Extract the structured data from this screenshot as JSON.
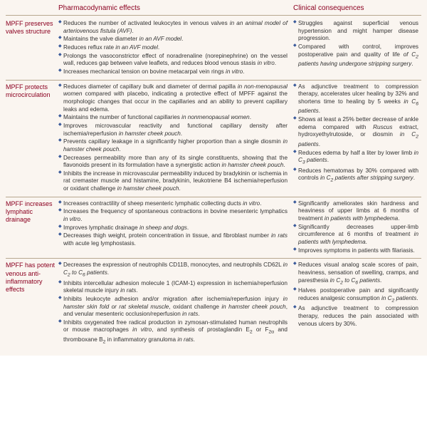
{
  "headers": {
    "pharm": "Pharmacodynamic effects",
    "clin": "Clinical consequences"
  },
  "rows": [
    {
      "label": "MPFF preserves valves structure",
      "pharm": [
        "Reduces the number of activated leukocytes in venous valves <i>in an animal model of arteriovenous fistula (AVF)</i>.",
        "Maintains the valve diameter <i>in an AVF model</i>.",
        "Reduces reflux rate <i>in an AVF model</i>.",
        "Prolongs the vasoconstrictor effect of noradrenaline (norepinephrine) on the vessel wall, reduces gap between valve leaflets, and reduces blood venous stasis <i>in vitro</i>.",
        "Increases mechanical tension on bovine metacarpal vein rings <i>in vitro</i>."
      ],
      "clin": [
        "Struggles against superficial venous hypertension and might hamper disease progression.",
        "Compared with control, improves postoperative pain and quality of life <i>of C<sub>2</sub> patients having undergone stripping surgery</i>."
      ]
    },
    {
      "label": "MPFF protects microcirculation",
      "pharm": [
        "Reduces diameter of capillary bulk and diameter of dermal papilla <i>in non-menopausal women</i> compared with placebo, indicating a protective effect of MPFF against the morphologic changes that occur in the capillaries and an ability to prevent capillary leaks and edema.",
        "Maintains the number of functional capillaries <i>in nonmenopausal women</i>.",
        "Improves microvascular reactivity and functional capillary density after ischemia/reperfusion <i>in hamster cheek pouch</i>.",
        "Prevents capillary leakage in a significantly higher proportion than a single diosmin <i>in hamster cheek pouch</i>.",
        "Decreases permeability more than any of its single constituents, showing that the flavonoids present in its formulation have a synergistic action <i>in hamster cheek pouch</i>.",
        "Inhibits the increase in microvascular permeability induced by bradykinin or ischemia in rat cremaster muscle and histamine, bradykinin, leukotriene B4 ischemia/reperfusion or oxidant challenge <i>in hamster cheek pouch</i>."
      ],
      "clin": [
        "As adjunctive treatment to compression therapy, accelerates ulcer healing by 32% and shortens time to healing by 5 weeks <i>in C<sub>6</sub> patients</i>.",
        "Shows at least a 25% better decrease of ankle edema compared with <i>Ruscus</i> extract, hydroxyethylrutoside, or diosmin <i>in C<sub>2</sub> patients</i>.",
        "Reduces edema by half a liter by lower limb <i>in C<sub>3</sub> patients</i>.",
        "Reduces hematomas by 30% compared with controls <i>in C<sub>2</sub> patients after stripping surgery</i>."
      ]
    },
    {
      "label": "MPFF increases lymphatic drainage",
      "pharm": [
        "Increases contractility of sheep mesenteric lymphatic collecting ducts <i>in vitro</i>.",
        "Increases the frequency of spontaneous contractions in bovine mesenteric lymphatics <i>in vitro</i>.",
        "Improves lymphatic drainage <i>in sheep and dogs</i>.",
        "Decreases thigh weight, protein concentration in tissue, and fibroblast number <i>in rats</i> with acute leg lymphostasis."
      ],
      "clin": [
        "Significantly ameliorates skin hardness and heaviness of upper limbs at 6 months of treatment <i>in patients with lymphedema</i>.",
        "Significantly decreases upper-limb circumference at 6 months of treatment <i>in patients with lymphedema</i>.",
        "Improves symptoms in patients with filariasis."
      ]
    },
    {
      "label": "MPFF has potent venous anti-inflammatory effects",
      "pharm": [
        "Decreases the expression of neutrophils CD11B, monocytes, and neutrophils CD62L <i>in C<sub>2</sub> to C<sub>6</sub> patients</i>.",
        "Inhibits intercellular adhesion molecule 1 (ICAM-1) expression in ischemia/reperfusion skeletal muscle injury <i>in rats</i>.",
        "Inhibits leukocyte adhesion and/or migration after ischemia/reperfusion injury <i>in hamster skin fold or rat skeletal muscle</i>, oxidant challenge <i>in hamster cheek pouch</i>, and venular mesenteric occlusion/reperfusion <i>in rats</i>.",
        "Inhibits oxygenated free radical production in zymosan-stimulated human neutrophils or mouse macrophages <i>in vitro</i>, and synthesis of prostaglandin E<sub>2</sub> or F<sub>2α</sub> and thromboxane B<sub>2</sub> in inflammatory granuloma <i>in rats</i>."
      ],
      "clin": [
        "Reduces visual analog scale scores of pain, heaviness, sensation of swelling, cramps, and paresthesia <i>in C<sub>2</sub> to C<sub>6</sub> patients</i>.",
        "Halves postoperative pain and significantly reduces analgesic consumption <i>in C<sub>2</sub> patients</i>.",
        "As adjunctive treatment to compression therapy, reduces the pain associated with venous ulcers by 30%."
      ]
    }
  ]
}
